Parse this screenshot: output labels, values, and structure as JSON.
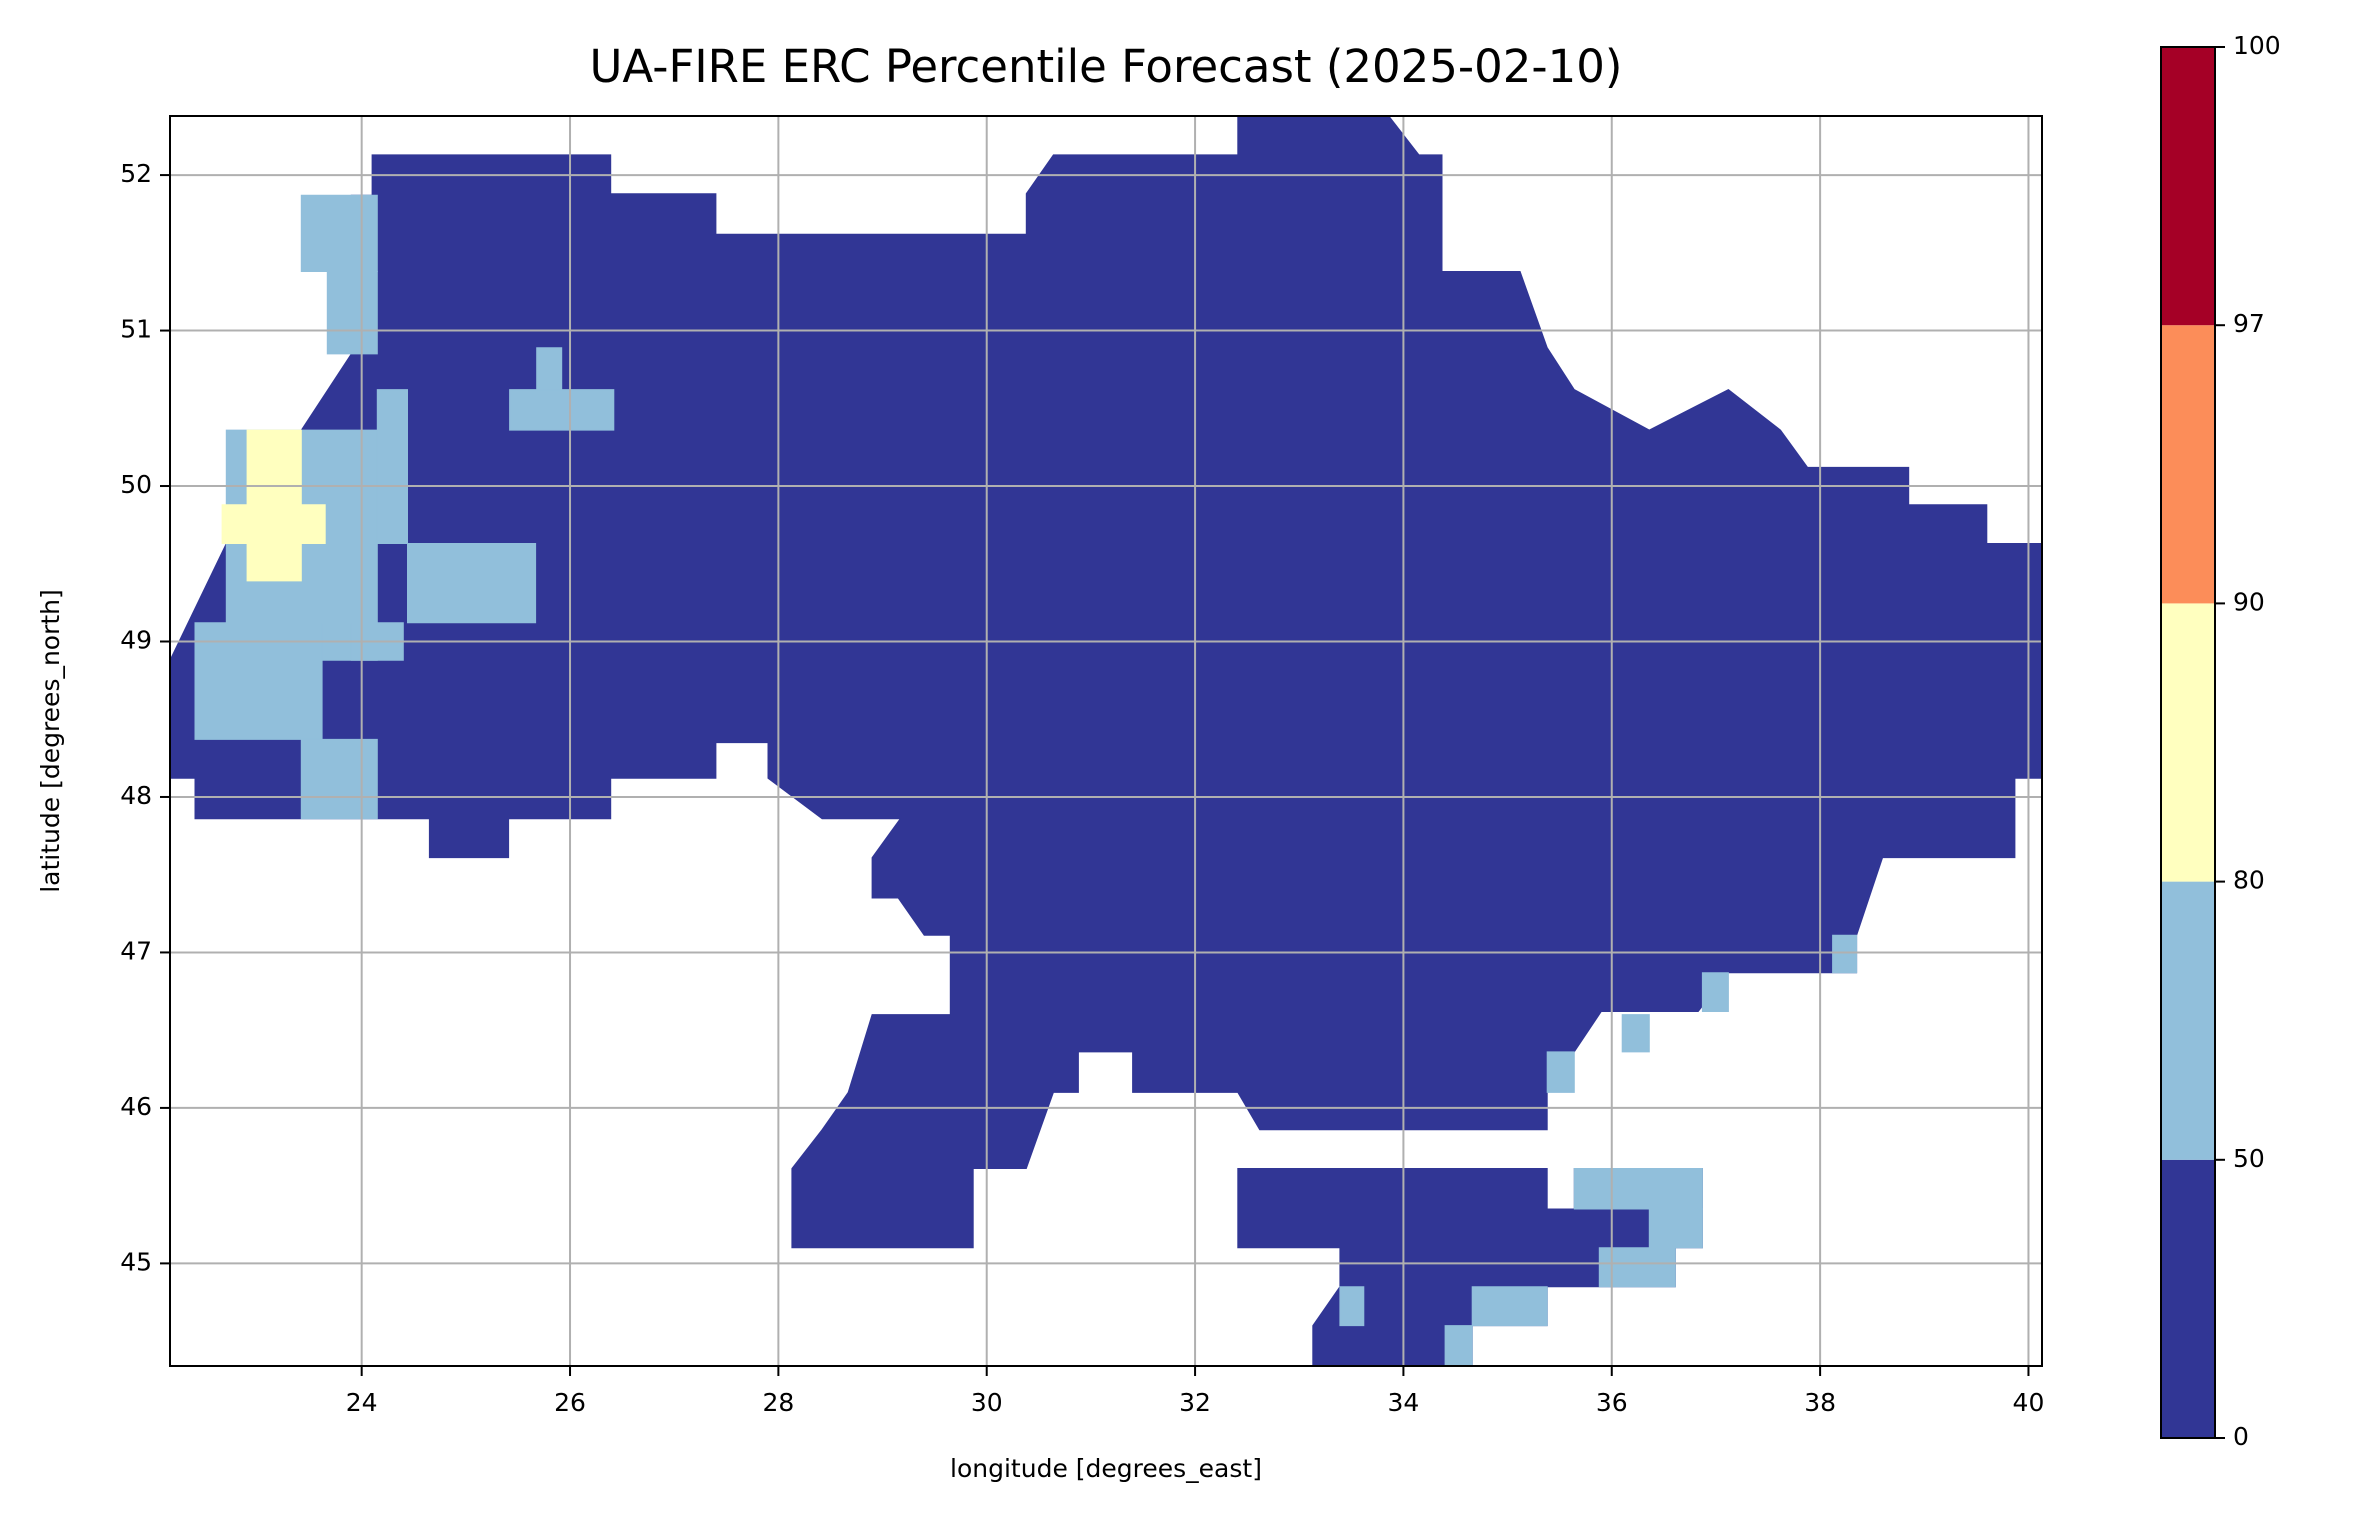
{
  "chart_data": {
    "type": "map",
    "title": "UA-FIRE ERC Percentile Forecast (2025-02-10)",
    "xlabel": "longitude [degrees_east]",
    "ylabel": "latitude [degrees_north]",
    "xlim": [
      22.16,
      40.13
    ],
    "ylim": [
      44.34,
      52.38
    ],
    "xticks": [
      24,
      26,
      28,
      30,
      32,
      34,
      36,
      38,
      40
    ],
    "yticks": [
      45,
      46,
      47,
      48,
      49,
      50,
      51,
      52
    ],
    "grid": true,
    "colorbar": {
      "bounds": [
        0,
        50,
        80,
        90,
        97,
        100
      ],
      "colors": [
        "#313695",
        "#91bfdb",
        "#ffffbf",
        "#fc8d59",
        "#a50026"
      ]
    },
    "regions": [
      {
        "level": [
          0,
          50
        ],
        "polygon": [
          [
            22.16,
            48.88
          ],
          [
            22.7,
            49.63
          ],
          [
            23.42,
            50.36
          ],
          [
            23.9,
            50.85
          ],
          [
            23.9,
            51.87
          ],
          [
            24.1,
            51.87
          ],
          [
            24.1,
            52.13
          ],
          [
            26.39,
            52.13
          ],
          [
            26.39,
            51.88
          ],
          [
            27.4,
            51.88
          ],
          [
            27.4,
            51.62
          ],
          [
            30.38,
            51.62
          ],
          [
            30.38,
            51.88
          ],
          [
            30.64,
            52.13
          ],
          [
            32.41,
            52.13
          ],
          [
            32.41,
            52.38
          ],
          [
            33.86,
            52.38
          ],
          [
            34.15,
            52.13
          ],
          [
            34.37,
            52.13
          ],
          [
            34.37,
            51.38
          ],
          [
            35.12,
            51.38
          ],
          [
            35.38,
            50.89
          ],
          [
            35.64,
            50.62
          ],
          [
            36.36,
            50.36
          ],
          [
            37.12,
            50.62
          ],
          [
            37.62,
            50.36
          ],
          [
            37.88,
            50.12
          ],
          [
            38.85,
            50.12
          ],
          [
            38.85,
            49.88
          ],
          [
            39.6,
            49.88
          ],
          [
            39.6,
            49.63
          ],
          [
            40.13,
            49.63
          ],
          [
            40.13,
            48.12
          ],
          [
            39.87,
            48.12
          ],
          [
            39.87,
            47.61
          ],
          [
            38.6,
            47.61
          ],
          [
            38.35,
            47.11
          ],
          [
            38.35,
            46.87
          ],
          [
            37.12,
            46.87
          ],
          [
            36.83,
            46.62
          ],
          [
            35.9,
            46.62
          ],
          [
            35.64,
            46.36
          ],
          [
            35.38,
            46.36
          ],
          [
            35.38,
            45.86
          ],
          [
            32.62,
            45.86
          ],
          [
            32.41,
            46.1
          ],
          [
            31.4,
            46.1
          ],
          [
            31.4,
            46.36
          ],
          [
            30.88,
            46.36
          ],
          [
            30.88,
            46.1
          ],
          [
            30.64,
            46.1
          ],
          [
            30.38,
            45.61
          ],
          [
            29.87,
            45.61
          ],
          [
            29.87,
            45.1
          ],
          [
            28.13,
            45.1
          ],
          [
            28.13,
            45.61
          ],
          [
            28.42,
            45.86
          ],
          [
            28.67,
            46.1
          ],
          [
            28.9,
            46.6
          ],
          [
            29.65,
            46.6
          ],
          [
            29.65,
            47.11
          ],
          [
            29.4,
            47.11
          ],
          [
            29.15,
            47.35
          ],
          [
            28.9,
            47.35
          ],
          [
            28.9,
            47.61
          ],
          [
            29.17,
            47.86
          ],
          [
            28.42,
            47.86
          ],
          [
            27.9,
            48.12
          ],
          [
            27.9,
            48.35
          ],
          [
            27.4,
            48.35
          ],
          [
            27.4,
            48.12
          ],
          [
            26.39,
            48.12
          ],
          [
            26.39,
            47.86
          ],
          [
            25.41,
            47.86
          ],
          [
            25.41,
            47.61
          ],
          [
            24.65,
            47.61
          ],
          [
            24.65,
            47.86
          ],
          [
            22.4,
            47.86
          ],
          [
            22.4,
            48.12
          ],
          [
            22.16,
            48.12
          ]
        ]
      },
      {
        "level": [
          0,
          50
        ],
        "polygon": [
          [
            32.41,
            45.61
          ],
          [
            35.38,
            45.61
          ],
          [
            35.38,
            45.35
          ],
          [
            35.64,
            45.35
          ],
          [
            35.64,
            45.61
          ],
          [
            36.87,
            45.61
          ],
          [
            36.87,
            45.1
          ],
          [
            36.61,
            45.1
          ],
          [
            36.61,
            44.85
          ],
          [
            35.38,
            44.85
          ],
          [
            35.38,
            44.6
          ],
          [
            34.66,
            44.6
          ],
          [
            34.66,
            44.34
          ],
          [
            33.13,
            44.34
          ],
          [
            33.13,
            44.6
          ],
          [
            33.39,
            44.85
          ],
          [
            33.39,
            45.1
          ],
          [
            32.41,
            45.1
          ]
        ]
      },
      {
        "level": [
          50,
          80
        ],
        "polygon": [
          [
            23.42,
            51.87
          ],
          [
            24.15,
            51.87
          ],
          [
            24.15,
            51.38
          ],
          [
            23.42,
            51.38
          ]
        ]
      },
      {
        "level": [
          50,
          80
        ],
        "polygon": [
          [
            23.67,
            51.38
          ],
          [
            24.15,
            51.38
          ],
          [
            24.15,
            50.85
          ],
          [
            23.67,
            50.85
          ]
        ]
      },
      {
        "level": [
          50,
          80
        ],
        "polygon": [
          [
            22.7,
            50.36
          ],
          [
            24.15,
            50.36
          ],
          [
            24.15,
            48.88
          ],
          [
            22.7,
            48.88
          ]
        ]
      },
      {
        "level": [
          50,
          80
        ],
        "polygon": [
          [
            24.15,
            50.62
          ],
          [
            24.44,
            50.62
          ],
          [
            24.44,
            49.63
          ],
          [
            24.15,
            49.63
          ]
        ]
      },
      {
        "level": [
          50,
          80
        ],
        "polygon": [
          [
            24.44,
            49.63
          ],
          [
            25.67,
            49.63
          ],
          [
            25.67,
            49.12
          ],
          [
            24.44,
            49.12
          ]
        ]
      },
      {
        "level": [
          50,
          80
        ],
        "polygon": [
          [
            25.42,
            50.62
          ],
          [
            26.42,
            50.62
          ],
          [
            26.42,
            50.36
          ],
          [
            25.42,
            50.36
          ]
        ]
      },
      {
        "level": [
          50,
          80
        ],
        "polygon": [
          [
            25.68,
            50.89
          ],
          [
            25.92,
            50.89
          ],
          [
            25.92,
            50.62
          ],
          [
            25.68,
            50.62
          ]
        ]
      },
      {
        "level": [
          50,
          80
        ],
        "polygon": [
          [
            22.4,
            49.12
          ],
          [
            23.62,
            49.12
          ],
          [
            23.62,
            48.37
          ],
          [
            22.4,
            48.37
          ]
        ]
      },
      {
        "level": [
          50,
          80
        ],
        "polygon": [
          [
            23.42,
            48.37
          ],
          [
            24.15,
            48.37
          ],
          [
            24.15,
            47.86
          ],
          [
            23.42,
            47.86
          ]
        ]
      },
      {
        "level": [
          50,
          80
        ],
        "polygon": [
          [
            23.9,
            49.12
          ],
          [
            24.4,
            49.12
          ],
          [
            24.4,
            48.88
          ],
          [
            23.9,
            48.88
          ]
        ]
      },
      {
        "level": [
          50,
          80
        ],
        "polygon": [
          [
            38.12,
            47.11
          ],
          [
            38.35,
            47.11
          ],
          [
            38.35,
            46.87
          ],
          [
            38.12,
            46.87
          ]
        ]
      },
      {
        "level": [
          50,
          80
        ],
        "polygon": [
          [
            36.87,
            46.87
          ],
          [
            37.12,
            46.87
          ],
          [
            37.12,
            46.62
          ],
          [
            36.87,
            46.62
          ]
        ]
      },
      {
        "level": [
          50,
          80
        ],
        "polygon": [
          [
            36.1,
            46.6
          ],
          [
            36.36,
            46.6
          ],
          [
            36.36,
            46.36
          ],
          [
            36.1,
            46.36
          ]
        ]
      },
      {
        "level": [
          50,
          80
        ],
        "polygon": [
          [
            35.38,
            46.36
          ],
          [
            35.64,
            46.36
          ],
          [
            35.64,
            46.1
          ],
          [
            35.38,
            46.1
          ]
        ]
      },
      {
        "level": [
          50,
          80
        ],
        "polygon": [
          [
            35.64,
            45.61
          ],
          [
            36.87,
            45.61
          ],
          [
            36.87,
            45.35
          ],
          [
            35.64,
            45.35
          ]
        ]
      },
      {
        "level": [
          50,
          80
        ],
        "polygon": [
          [
            36.36,
            45.35
          ],
          [
            36.87,
            45.35
          ],
          [
            36.87,
            45.1
          ],
          [
            36.36,
            45.1
          ]
        ]
      },
      {
        "level": [
          50,
          80
        ],
        "polygon": [
          [
            35.88,
            45.1
          ],
          [
            36.61,
            45.1
          ],
          [
            36.61,
            44.85
          ],
          [
            35.88,
            44.85
          ]
        ]
      },
      {
        "level": [
          50,
          80
        ],
        "polygon": [
          [
            34.66,
            44.85
          ],
          [
            35.38,
            44.85
          ],
          [
            35.38,
            44.6
          ],
          [
            34.66,
            44.6
          ]
        ]
      },
      {
        "level": [
          50,
          80
        ],
        "polygon": [
          [
            34.4,
            44.6
          ],
          [
            34.66,
            44.6
          ],
          [
            34.66,
            44.34
          ],
          [
            34.4,
            44.34
          ]
        ]
      },
      {
        "level": [
          50,
          80
        ],
        "polygon": [
          [
            33.39,
            44.85
          ],
          [
            33.62,
            44.85
          ],
          [
            33.62,
            44.6
          ],
          [
            33.39,
            44.6
          ]
        ]
      },
      {
        "level": [
          80,
          90
        ],
        "polygon": [
          [
            22.9,
            50.36
          ],
          [
            23.42,
            50.36
          ],
          [
            23.42,
            49.39
          ],
          [
            22.9,
            49.39
          ]
        ]
      },
      {
        "level": [
          80,
          90
        ],
        "polygon": [
          [
            22.66,
            49.88
          ],
          [
            23.65,
            49.88
          ],
          [
            23.65,
            49.63
          ],
          [
            22.66,
            49.63
          ]
        ]
      }
    ]
  }
}
